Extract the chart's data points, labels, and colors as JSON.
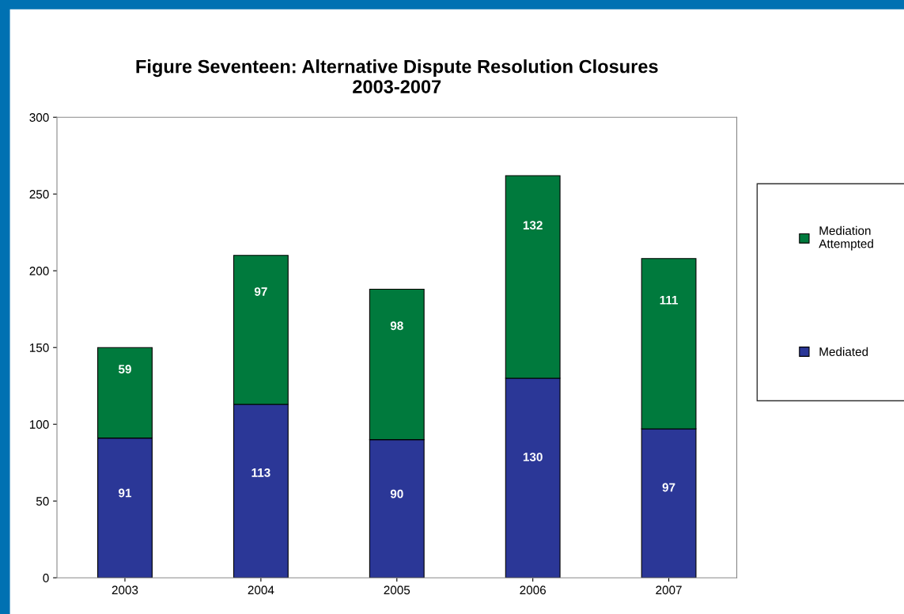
{
  "chart_data": {
    "type": "bar",
    "title": "Figure Seventeen: Alternative Dispute Resolution Closures\n2003-2007",
    "categories": [
      "2003",
      "2004",
      "2005",
      "2006",
      "2007"
    ],
    "series": [
      {
        "name": "Mediated",
        "color": "#2b3797",
        "values": [
          91,
          113,
          90,
          130,
          97
        ]
      },
      {
        "name": "Mediation\nAttempted",
        "color": "#007a3d",
        "values": [
          59,
          97,
          98,
          132,
          111
        ]
      }
    ],
    "stacked": true,
    "ylim": [
      0,
      300
    ],
    "yticks": [
      0,
      50,
      100,
      150,
      200,
      250,
      300
    ],
    "grid": false,
    "legend": "right",
    "data_labels": true
  }
}
